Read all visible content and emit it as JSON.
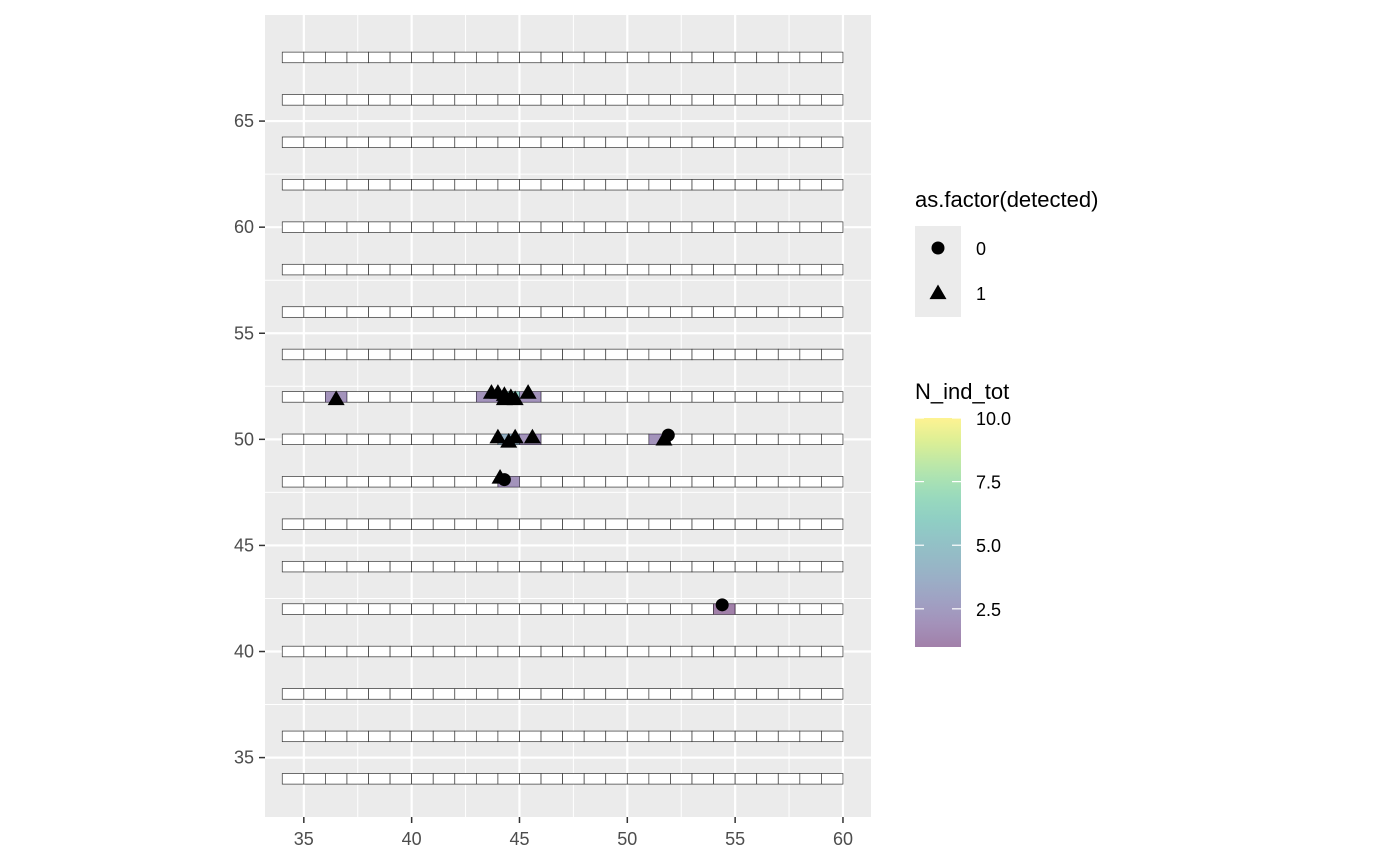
{
  "chart_data": {
    "type": "scatter",
    "xlim": [
      33.2,
      61.3
    ],
    "ylim": [
      32.2,
      70.0
    ],
    "x_ticks": [
      35,
      40,
      45,
      50,
      55,
      60
    ],
    "y_ticks": [
      35,
      40,
      45,
      50,
      55,
      60,
      65
    ],
    "x_tick_labels": [
      "35",
      "40",
      "45",
      "50",
      "55",
      "60"
    ],
    "y_tick_labels": [
      "35",
      "40",
      "45",
      "50",
      "55",
      "60",
      "65"
    ],
    "xlabel": "",
    "ylabel": "",
    "grid": true,
    "background_color": "#ebebeb",
    "grid_cells": {
      "x_start": 34,
      "x_end": 60,
      "cell_width": 1,
      "rows_y": [
        34,
        36,
        38,
        40,
        42,
        44,
        46,
        48,
        50,
        52,
        54,
        56,
        58,
        60,
        62,
        64,
        66,
        68
      ],
      "cell_height": 0.5
    },
    "filled_cells": [
      {
        "x": 36.5,
        "y": 52,
        "value": 2
      },
      {
        "x": 43.5,
        "y": 52,
        "value": 2
      },
      {
        "x": 44.5,
        "y": 52,
        "value": 6
      },
      {
        "x": 45.5,
        "y": 52,
        "value": 2
      },
      {
        "x": 44.5,
        "y": 50,
        "value": 4
      },
      {
        "x": 45.5,
        "y": 50,
        "value": 2
      },
      {
        "x": 51.5,
        "y": 50,
        "value": 2
      },
      {
        "x": 44.5,
        "y": 48,
        "value": 2
      },
      {
        "x": 54.5,
        "y": 42,
        "value": 1
      }
    ],
    "points": [
      {
        "x": 36.5,
        "y": 51.9,
        "detected": "1"
      },
      {
        "x": 43.7,
        "y": 52.2,
        "detected": "1"
      },
      {
        "x": 44.0,
        "y": 52.2,
        "detected": "1"
      },
      {
        "x": 44.3,
        "y": 52.1,
        "detected": "1"
      },
      {
        "x": 44.6,
        "y": 52.0,
        "detected": "1"
      },
      {
        "x": 44.3,
        "y": 51.9,
        "detected": "1"
      },
      {
        "x": 44.8,
        "y": 51.9,
        "detected": "1"
      },
      {
        "x": 45.4,
        "y": 52.2,
        "detected": "1"
      },
      {
        "x": 44.0,
        "y": 50.1,
        "detected": "1"
      },
      {
        "x": 44.5,
        "y": 49.9,
        "detected": "1"
      },
      {
        "x": 44.8,
        "y": 50.1,
        "detected": "1"
      },
      {
        "x": 45.6,
        "y": 50.1,
        "detected": "1"
      },
      {
        "x": 51.9,
        "y": 50.2,
        "detected": "0"
      },
      {
        "x": 51.7,
        "y": 50.0,
        "detected": "1"
      },
      {
        "x": 44.3,
        "y": 48.1,
        "detected": "0"
      },
      {
        "x": 44.1,
        "y": 48.2,
        "detected": "1"
      },
      {
        "x": 54.4,
        "y": 42.2,
        "detected": "0"
      }
    ],
    "legend_shape": {
      "title": "as.factor(detected)",
      "entries": [
        {
          "label": "0",
          "shape": "circle"
        },
        {
          "label": "1",
          "shape": "triangle"
        }
      ]
    },
    "legend_fill": {
      "title": "N_ind_tot",
      "range": [
        1,
        10
      ],
      "ticks": [
        2.5,
        5.0,
        7.5,
        10.0
      ],
      "tick_labels": [
        "2.5",
        "5.0",
        "7.5",
        "10.0"
      ],
      "colormap": "viridis",
      "alpha": 0.5
    }
  }
}
